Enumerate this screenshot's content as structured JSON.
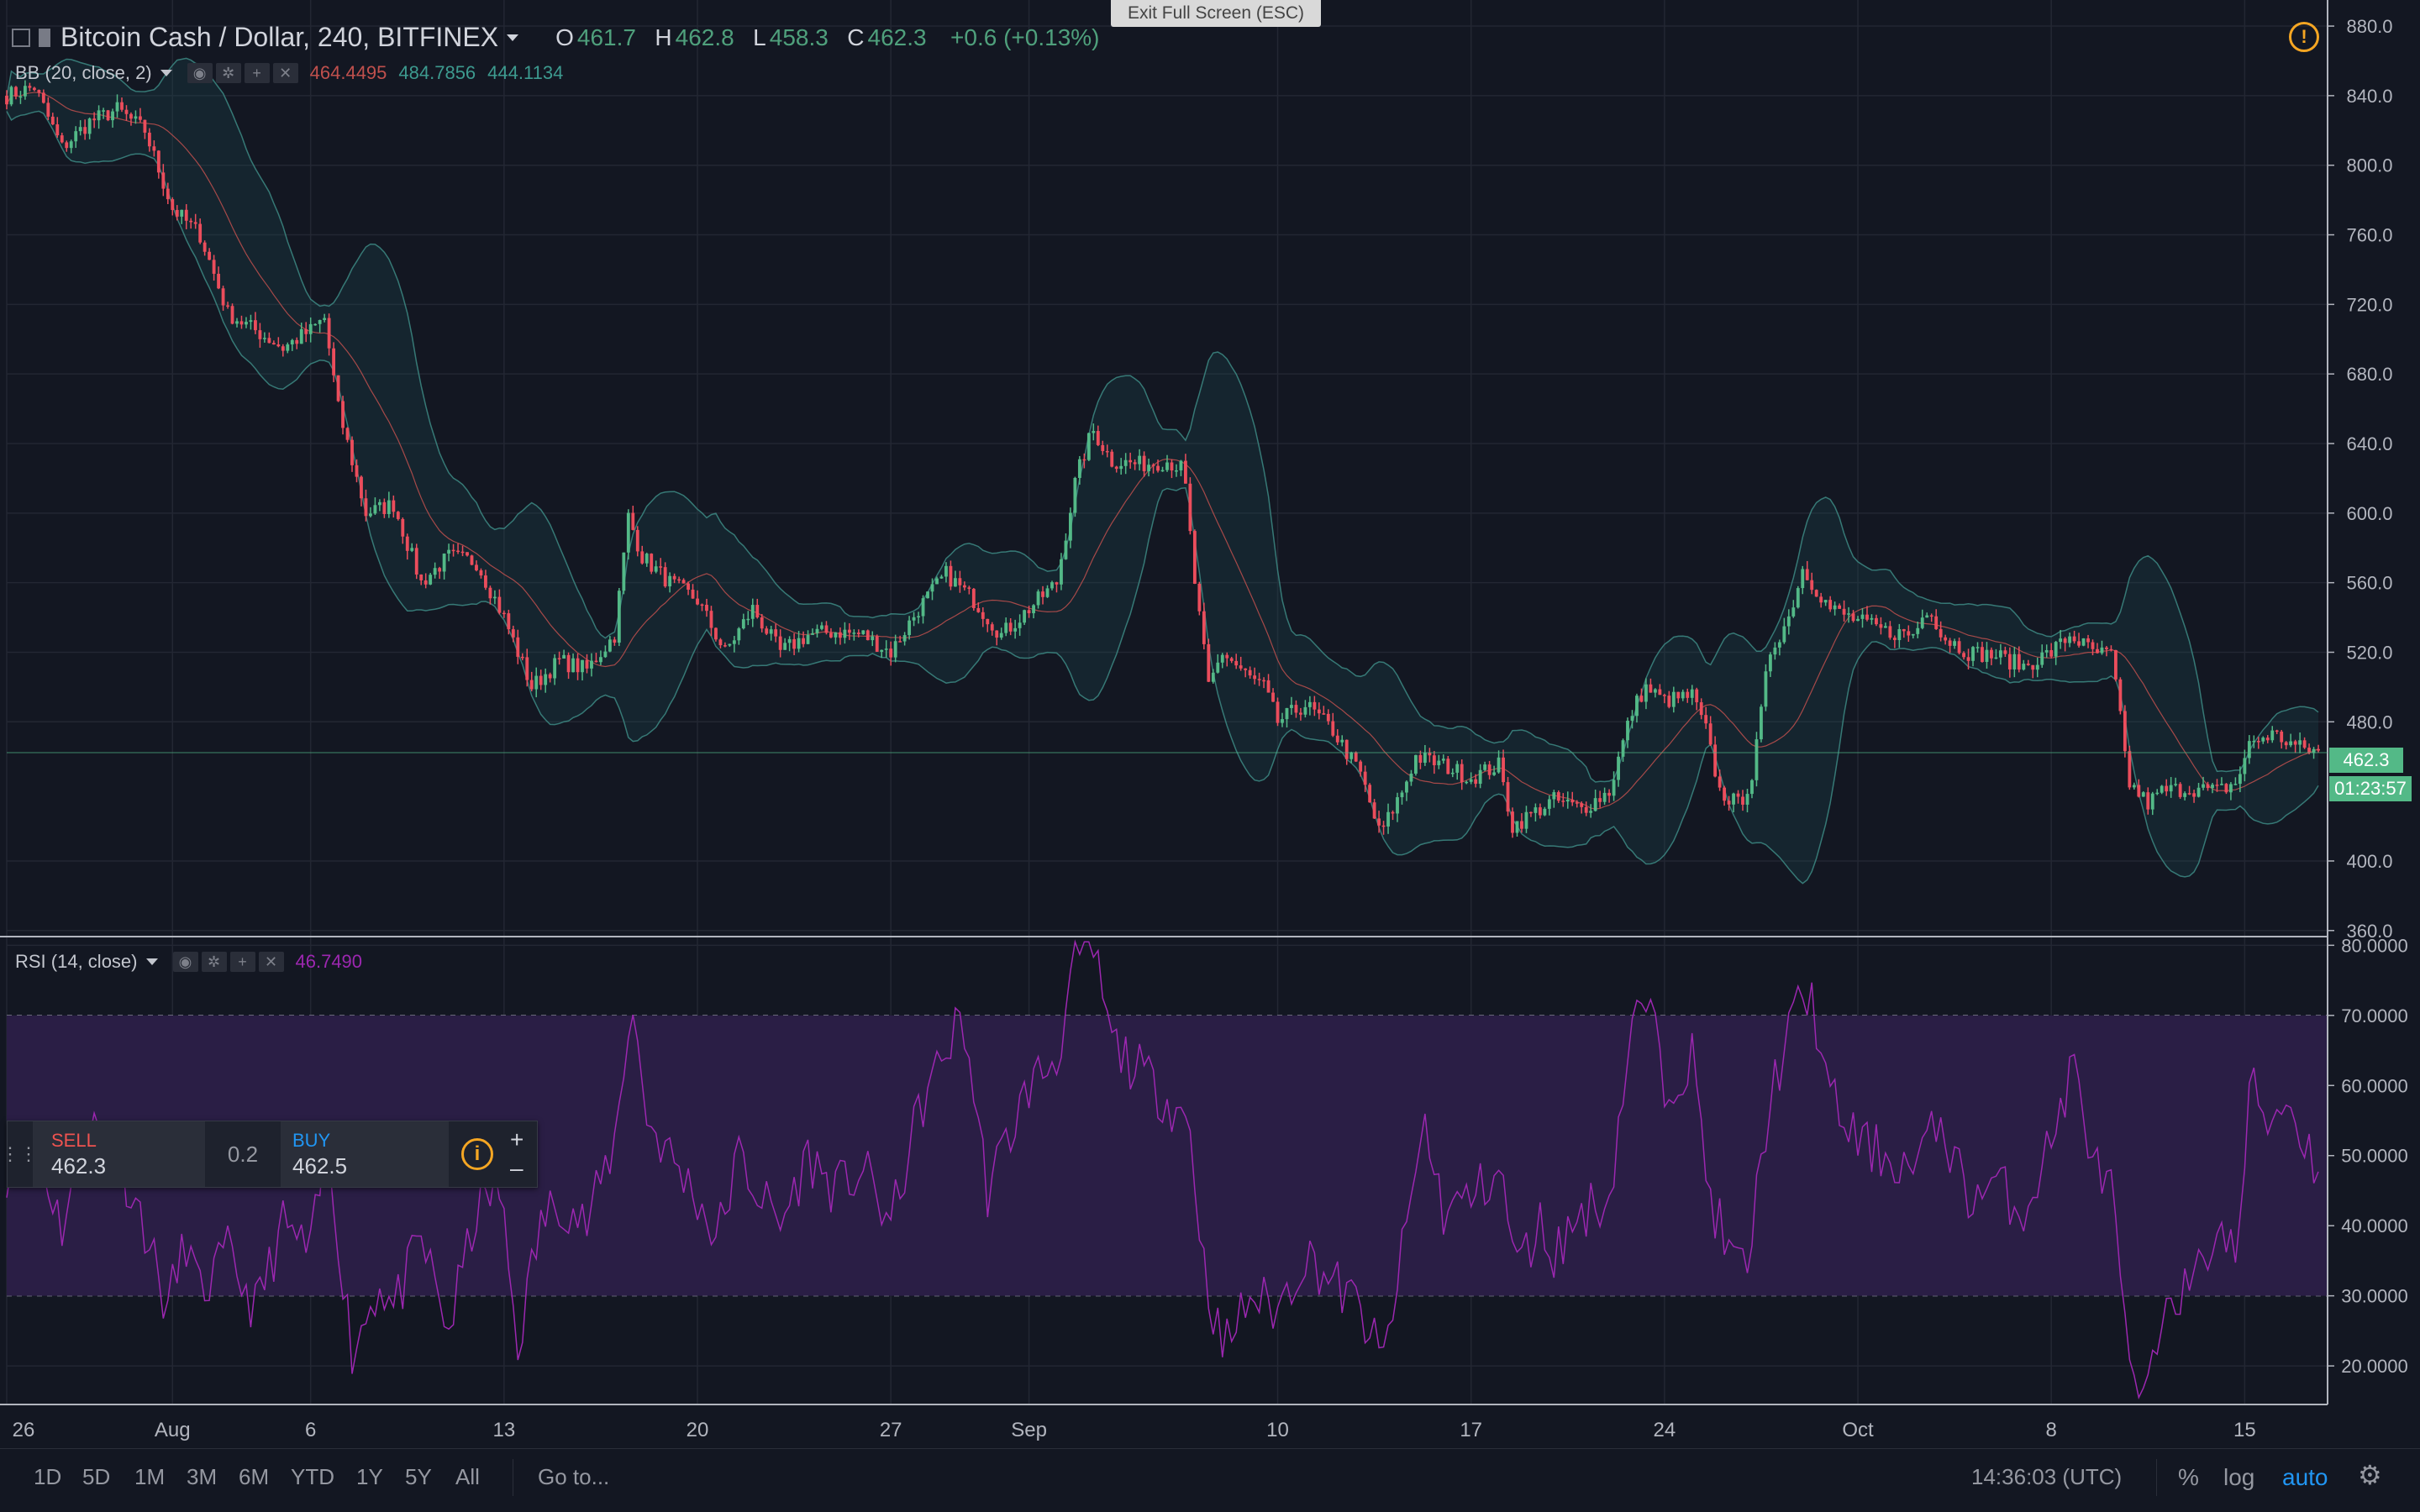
{
  "header": {
    "symbol_title": "Bitcoin Cash / Dollar, 240, BITFINEX",
    "ohlc": [
      {
        "k": "O",
        "v": "461.7"
      },
      {
        "k": "H",
        "v": "462.8"
      },
      {
        "k": "L",
        "v": "458.3"
      },
      {
        "k": "C",
        "v": "462.3"
      }
    ],
    "change": "+0.6 (+0.13%)"
  },
  "exit_fullscreen": "Exit Full Screen (ESC)",
  "bb": {
    "title": "BB (20, close, 2)",
    "basis": "464.4495",
    "upper": "484.7856",
    "lower": "444.1134",
    "colors": {
      "basis": "#c0504d",
      "band": "#3d8a84"
    }
  },
  "rsi": {
    "title": "RSI (14, close)",
    "value": "46.7490",
    "color": "#9c27b0"
  },
  "trade_panel": {
    "sell_label": "SELL",
    "sell_price": "462.3",
    "spread": "0.2",
    "buy_label": "BUY",
    "buy_price": "462.5",
    "plus": "+",
    "minus": "–"
  },
  "price_label": "462.3",
  "countdown": "01:23:57",
  "toolbar": {
    "timeframes": [
      "1D",
      "5D",
      "1M",
      "3M",
      "6M",
      "YTD",
      "1Y",
      "5Y",
      "All"
    ],
    "goto": "Go to...",
    "clock": "14:36:03 (UTC)",
    "percent": "%",
    "log": "log",
    "auto": "auto"
  },
  "colors": {
    "background": "#131722",
    "up": "#53b987",
    "down": "#eb4d5c",
    "rsi_band": "#2a1e45",
    "grid": "#232733"
  },
  "chart_data": [
    {
      "type": "candlestick",
      "title": "Bitcoin Cash / Dollar, 240, BITFINEX",
      "y_ticks": [
        "880.0",
        "840.0",
        "800.0",
        "760.0",
        "720.0",
        "680.0",
        "640.0",
        "600.0",
        "560.0",
        "520.0",
        "480.0",
        "400.0",
        "360.0"
      ],
      "ylim": [
        357,
        895
      ],
      "x_ticks": [
        {
          "label": "26",
          "day": 0
        },
        {
          "label": "Aug",
          "day": 6
        },
        {
          "label": "6",
          "day": 11
        },
        {
          "label": "13",
          "day": 18
        },
        {
          "label": "20",
          "day": 25
        },
        {
          "label": "27",
          "day": 32
        },
        {
          "label": "Sep",
          "day": 37
        },
        {
          "label": "10",
          "day": 46
        },
        {
          "label": "17",
          "day": 53
        },
        {
          "label": "24",
          "day": 60
        },
        {
          "label": "Oct",
          "day": 67
        },
        {
          "label": "8",
          "day": 74
        },
        {
          "label": "15",
          "day": 81
        }
      ],
      "xlim": [
        0,
        84
      ],
      "close_path": [
        {
          "day": 0,
          "price": 840
        },
        {
          "day": 1,
          "price": 845
        },
        {
          "day": 2,
          "price": 810
        },
        {
          "day": 3,
          "price": 825
        },
        {
          "day": 4,
          "price": 832
        },
        {
          "day": 5,
          "price": 820
        },
        {
          "day": 6,
          "price": 775
        },
        {
          "day": 7,
          "price": 760
        },
        {
          "day": 8,
          "price": 715
        },
        {
          "day": 9,
          "price": 705
        },
        {
          "day": 10,
          "price": 695
        },
        {
          "day": 11,
          "price": 705
        },
        {
          "day": 11.5,
          "price": 712
        },
        {
          "day": 12,
          "price": 660
        },
        {
          "day": 13,
          "price": 600
        },
        {
          "day": 14,
          "price": 605
        },
        {
          "day": 15,
          "price": 560
        },
        {
          "day": 16,
          "price": 575
        },
        {
          "day": 17,
          "price": 572
        },
        {
          "day": 18,
          "price": 540
        },
        {
          "day": 19,
          "price": 500
        },
        {
          "day": 20,
          "price": 515
        },
        {
          "day": 21,
          "price": 510
        },
        {
          "day": 22,
          "price": 530
        },
        {
          "day": 22.5,
          "price": 598
        },
        {
          "day": 23,
          "price": 575
        },
        {
          "day": 24,
          "price": 560
        },
        {
          "day": 25,
          "price": 550
        },
        {
          "day": 26,
          "price": 520
        },
        {
          "day": 27,
          "price": 545
        },
        {
          "day": 28,
          "price": 520
        },
        {
          "day": 29,
          "price": 530
        },
        {
          "day": 30,
          "price": 532
        },
        {
          "day": 31,
          "price": 530
        },
        {
          "day": 32,
          "price": 520
        },
        {
          "day": 33,
          "price": 545
        },
        {
          "day": 34,
          "price": 565
        },
        {
          "day": 35,
          "price": 550
        },
        {
          "day": 36,
          "price": 530
        },
        {
          "day": 37,
          "price": 545
        },
        {
          "day": 38,
          "price": 560
        },
        {
          "day": 38.7,
          "price": 620
        },
        {
          "day": 39.3,
          "price": 648
        },
        {
          "day": 40,
          "price": 630
        },
        {
          "day": 41,
          "price": 628
        },
        {
          "day": 42,
          "price": 630
        },
        {
          "day": 42.6,
          "price": 625
        },
        {
          "day": 43,
          "price": 560
        },
        {
          "day": 43.5,
          "price": 500
        },
        {
          "day": 44,
          "price": 520
        },
        {
          "day": 45,
          "price": 505
        },
        {
          "day": 45.5,
          "price": 500
        },
        {
          "day": 46,
          "price": 480
        },
        {
          "day": 47,
          "price": 490
        },
        {
          "day": 48,
          "price": 475
        },
        {
          "day": 49,
          "price": 450
        },
        {
          "day": 49.7,
          "price": 415
        },
        {
          "day": 50.5,
          "price": 440
        },
        {
          "day": 51,
          "price": 460
        },
        {
          "day": 52,
          "price": 455
        },
        {
          "day": 53,
          "price": 448
        },
        {
          "day": 54,
          "price": 455
        },
        {
          "day": 54.5,
          "price": 420
        },
        {
          "day": 55,
          "price": 425
        },
        {
          "day": 56,
          "price": 435
        },
        {
          "day": 57,
          "price": 430
        },
        {
          "day": 58,
          "price": 440
        },
        {
          "day": 58.8,
          "price": 485
        },
        {
          "day": 59.3,
          "price": 500
        },
        {
          "day": 60,
          "price": 492
        },
        {
          "day": 61,
          "price": 495
        },
        {
          "day": 61.5,
          "price": 475
        },
        {
          "day": 62,
          "price": 440
        },
        {
          "day": 62.7,
          "price": 432
        },
        {
          "day": 63.2,
          "price": 450
        },
        {
          "day": 63.8,
          "price": 520
        },
        {
          "day": 64.5,
          "price": 540
        },
        {
          "day": 65,
          "price": 568
        },
        {
          "day": 66,
          "price": 545
        },
        {
          "day": 67,
          "price": 538
        },
        {
          "day": 68,
          "price": 532
        },
        {
          "day": 69,
          "price": 530
        },
        {
          "day": 69.6,
          "price": 548
        },
        {
          "day": 70,
          "price": 530
        },
        {
          "day": 71,
          "price": 520
        },
        {
          "day": 72,
          "price": 518
        },
        {
          "day": 73,
          "price": 512
        },
        {
          "day": 74,
          "price": 520
        },
        {
          "day": 74.7,
          "price": 530
        },
        {
          "day": 75.5,
          "price": 520
        },
        {
          "day": 76.2,
          "price": 518
        },
        {
          "day": 76.8,
          "price": 445
        },
        {
          "day": 77.5,
          "price": 433
        },
        {
          "day": 78,
          "price": 440
        },
        {
          "day": 79,
          "price": 442
        },
        {
          "day": 80,
          "price": 440
        },
        {
          "day": 80.7,
          "price": 445
        },
        {
          "day": 81.2,
          "price": 468
        },
        {
          "day": 82,
          "price": 473
        },
        {
          "day": 83,
          "price": 465
        },
        {
          "day": 83.8,
          "price": 462.3
        }
      ],
      "last_price": 462.3
    },
    {
      "type": "line",
      "title": "RSI (14, close)",
      "y_ticks": [
        "80.0000",
        "70.0000",
        "60.0000",
        "50.0000",
        "40.0000",
        "30.0000",
        "20.0000"
      ],
      "ylim": [
        14.5,
        81
      ],
      "upper_band": 70,
      "lower_band": 30,
      "last_value": 46.749,
      "path": [
        {
          "day": 0,
          "value": 48
        },
        {
          "day": 1,
          "value": 52
        },
        {
          "day": 2,
          "value": 40
        },
        {
          "day": 3,
          "value": 55
        },
        {
          "day": 4,
          "value": 50
        },
        {
          "day": 5,
          "value": 40
        },
        {
          "day": 5.8,
          "value": 28
        },
        {
          "day": 6.5,
          "value": 38
        },
        {
          "day": 7,
          "value": 30
        },
        {
          "day": 8,
          "value": 36
        },
        {
          "day": 9,
          "value": 28
        },
        {
          "day": 10,
          "value": 40
        },
        {
          "day": 11,
          "value": 36
        },
        {
          "day": 11.6,
          "value": 52
        },
        {
          "day": 12.5,
          "value": 22
        },
        {
          "day": 13.5,
          "value": 32
        },
        {
          "day": 14,
          "value": 28
        },
        {
          "day": 15,
          "value": 38
        },
        {
          "day": 16,
          "value": 25
        },
        {
          "day": 17,
          "value": 42
        },
        {
          "day": 17.8,
          "value": 46
        },
        {
          "day": 18.5,
          "value": 23
        },
        {
          "day": 19.3,
          "value": 40
        },
        {
          "day": 20,
          "value": 44
        },
        {
          "day": 21,
          "value": 40
        },
        {
          "day": 22,
          "value": 52
        },
        {
          "day": 22.6,
          "value": 72
        },
        {
          "day": 23.2,
          "value": 55
        },
        {
          "day": 24,
          "value": 50
        },
        {
          "day": 25,
          "value": 44
        },
        {
          "day": 25.7,
          "value": 38
        },
        {
          "day": 26.5,
          "value": 50
        },
        {
          "day": 27,
          "value": 46
        },
        {
          "day": 28,
          "value": 40
        },
        {
          "day": 29,
          "value": 50
        },
        {
          "day": 30,
          "value": 45
        },
        {
          "day": 31,
          "value": 48
        },
        {
          "day": 32,
          "value": 40
        },
        {
          "day": 33,
          "value": 56
        },
        {
          "day": 34,
          "value": 65
        },
        {
          "day": 34.6,
          "value": 70
        },
        {
          "day": 35.5,
          "value": 45
        },
        {
          "day": 36,
          "value": 50
        },
        {
          "day": 37,
          "value": 60
        },
        {
          "day": 38,
          "value": 64
        },
        {
          "day": 38.7,
          "value": 78
        },
        {
          "day": 39.3,
          "value": 80
        },
        {
          "day": 40,
          "value": 66
        },
        {
          "day": 41,
          "value": 62
        },
        {
          "day": 42,
          "value": 58
        },
        {
          "day": 42.8,
          "value": 55
        },
        {
          "day": 43.3,
          "value": 35
        },
        {
          "day": 44,
          "value": 22
        },
        {
          "day": 45,
          "value": 30
        },
        {
          "day": 46,
          "value": 28
        },
        {
          "day": 47,
          "value": 36
        },
        {
          "day": 48,
          "value": 32
        },
        {
          "day": 49,
          "value": 28
        },
        {
          "day": 49.8,
          "value": 20
        },
        {
          "day": 50.6,
          "value": 38
        },
        {
          "day": 51.3,
          "value": 55
        },
        {
          "day": 52,
          "value": 42
        },
        {
          "day": 53,
          "value": 44
        },
        {
          "day": 54,
          "value": 48
        },
        {
          "day": 54.7,
          "value": 34
        },
        {
          "day": 55.5,
          "value": 40
        },
        {
          "day": 56,
          "value": 36
        },
        {
          "day": 57,
          "value": 42
        },
        {
          "day": 58,
          "value": 44
        },
        {
          "day": 58.8,
          "value": 68
        },
        {
          "day": 59.4,
          "value": 72
        },
        {
          "day": 60,
          "value": 60
        },
        {
          "day": 61,
          "value": 64
        },
        {
          "day": 61.6,
          "value": 45
        },
        {
          "day": 62.4,
          "value": 35
        },
        {
          "day": 63,
          "value": 34
        },
        {
          "day": 63.8,
          "value": 58
        },
        {
          "day": 64.7,
          "value": 70
        },
        {
          "day": 65.3,
          "value": 73
        },
        {
          "day": 66,
          "value": 58
        },
        {
          "day": 67,
          "value": 52
        },
        {
          "day": 68,
          "value": 50
        },
        {
          "day": 69,
          "value": 48
        },
        {
          "day": 70,
          "value": 55
        },
        {
          "day": 71,
          "value": 44
        },
        {
          "day": 72,
          "value": 46
        },
        {
          "day": 73,
          "value": 42
        },
        {
          "day": 74,
          "value": 52
        },
        {
          "day": 74.8,
          "value": 63
        },
        {
          "day": 75.6,
          "value": 48
        },
        {
          "day": 76.2,
          "value": 45
        },
        {
          "day": 76.8,
          "value": 18
        },
        {
          "day": 77.5,
          "value": 15
        },
        {
          "day": 78.2,
          "value": 32
        },
        {
          "day": 79,
          "value": 30
        },
        {
          "day": 80,
          "value": 40
        },
        {
          "day": 80.7,
          "value": 35
        },
        {
          "day": 81.2,
          "value": 60
        },
        {
          "day": 81.8,
          "value": 55
        },
        {
          "day": 82.5,
          "value": 58
        },
        {
          "day": 83.2,
          "value": 52
        },
        {
          "day": 83.8,
          "value": 46.75
        }
      ]
    }
  ]
}
